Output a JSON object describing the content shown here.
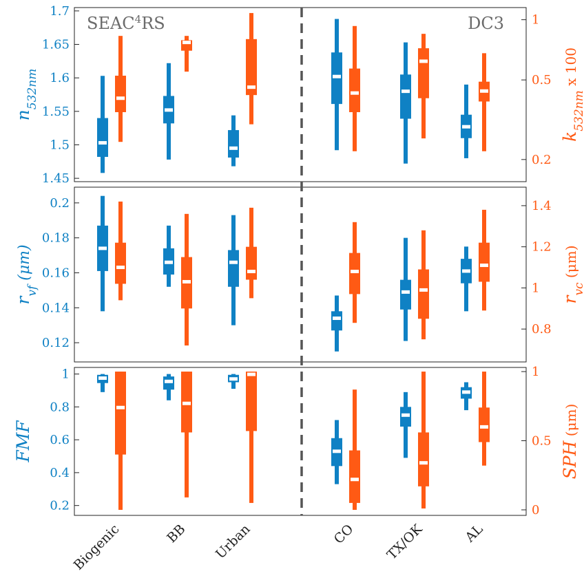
{
  "chart_data": {
    "type": "box",
    "colors": {
      "left": "#0f81c4",
      "right": "#ff5a14",
      "median": "#ffffff",
      "divider": "#555555",
      "frame": "#222222"
    },
    "campaigns": [
      {
        "name": "SEAC",
        "sup": "4",
        "name_after": "RS",
        "side": "left"
      },
      {
        "name": "DC3",
        "sup": "",
        "name_after": "",
        "side": "right"
      }
    ],
    "categories": [
      "Biogenic",
      "BB",
      "Urban",
      "CO",
      "TX/OK",
      "AL"
    ],
    "panels": [
      {
        "left": {
          "label_main": "n",
          "label_sub": "532nm",
          "label_rest": "",
          "ticks": [
            1.45,
            1.5,
            1.55,
            1.6,
            1.65,
            1.7
          ],
          "tick_labels": [
            "1.45",
            "1.5",
            "1.55",
            "1.6",
            "1.65",
            "1.7"
          ],
          "ylim": [
            1.445,
            1.705
          ]
        },
        "right": {
          "label_main": "k",
          "label_sub": "532nm",
          "label_rest": " x 100",
          "scale": "log",
          "ticks": [
            0.2,
            0.5,
            1
          ],
          "tick_labels": [
            "0.2",
            "0.5",
            "1"
          ],
          "ylim": [
            0.155,
            1.15
          ]
        },
        "boxes": [
          {
            "left": {
              "whislo": 1.458,
              "q1": 1.482,
              "med": 1.503,
              "q3": 1.54,
              "whishi": 1.603
            },
            "right": {
              "whislo": 0.245,
              "q1": 0.345,
              "med": 0.405,
              "q3": 0.525,
              "whishi": 0.83
            }
          },
          {
            "left": {
              "whislo": 1.478,
              "q1": 1.532,
              "med": 1.552,
              "q3": 1.573,
              "whishi": 1.622
            },
            "right": {
              "whislo": 0.55,
              "q1": 0.7,
              "med": 0.77,
              "q3": 0.79,
              "whishi": 0.83
            }
          },
          {
            "left": {
              "whislo": 1.468,
              "q1": 1.481,
              "med": 1.495,
              "q3": 1.522,
              "whishi": 1.544
            },
            "right": {
              "whislo": 0.3,
              "q1": 0.42,
              "med": 0.46,
              "q3": 0.8,
              "whishi": 1.08
            }
          },
          {
            "left": {
              "whislo": 1.492,
              "q1": 1.561,
              "med": 1.602,
              "q3": 1.638,
              "whishi": 1.688
            },
            "right": {
              "whislo": 0.22,
              "q1": 0.345,
              "med": 0.43,
              "q3": 0.57,
              "whishi": 0.93
            }
          },
          {
            "left": {
              "whislo": 1.472,
              "q1": 1.539,
              "med": 1.58,
              "q3": 1.605,
              "whishi": 1.653
            },
            "right": {
              "whislo": 0.255,
              "q1": 0.405,
              "med": 0.62,
              "q3": 0.72,
              "whishi": 0.85
            }
          },
          {
            "left": {
              "whislo": 1.48,
              "q1": 1.51,
              "med": 1.527,
              "q3": 1.545,
              "whishi": 1.59
            },
            "right": {
              "whislo": 0.22,
              "q1": 0.39,
              "med": 0.44,
              "q3": 0.49,
              "whishi": 0.68
            }
          }
        ]
      },
      {
        "left": {
          "label_main": "r",
          "label_sub": "vf",
          "label_rest": " (μm)",
          "ticks": [
            0.12,
            0.14,
            0.16,
            0.18,
            0.2
          ],
          "tick_labels": [
            "0.12",
            "0.14",
            "0.16",
            "0.18",
            "0.2"
          ],
          "ylim": [
            0.109,
            0.209
          ]
        },
        "right": {
          "label_main": "r",
          "label_sub": "vc",
          "label_rest": " (μm)",
          "scale": "linear",
          "ticks": [
            0.8,
            1,
            1.2,
            1.4
          ],
          "tick_labels": [
            "0.8",
            "1",
            "1.2",
            "1.4"
          ],
          "ylim": [
            0.64,
            1.49
          ]
        },
        "boxes": [
          {
            "left": {
              "whislo": 0.138,
              "q1": 0.161,
              "med": 0.174,
              "q3": 0.187,
              "whishi": 0.204
            },
            "right": {
              "whislo": 0.94,
              "q1": 1.02,
              "med": 1.1,
              "q3": 1.22,
              "whishi": 1.42
            }
          },
          {
            "left": {
              "whislo": 0.152,
              "q1": 0.159,
              "med": 0.166,
              "q3": 0.174,
              "whishi": 0.187
            },
            "right": {
              "whislo": 0.72,
              "q1": 0.9,
              "med": 1.03,
              "q3": 1.15,
              "whishi": 1.36
            }
          },
          {
            "left": {
              "whislo": 0.13,
              "q1": 0.152,
              "med": 0.166,
              "q3": 0.173,
              "whishi": 0.193
            },
            "right": {
              "whislo": 0.95,
              "q1": 1.04,
              "med": 1.08,
              "q3": 1.2,
              "whishi": 1.39
            }
          },
          {
            "left": {
              "whislo": 0.115,
              "q1": 0.127,
              "med": 0.134,
              "q3": 0.138,
              "whishi": 0.147
            },
            "right": {
              "whislo": 0.83,
              "q1": 0.97,
              "med": 1.08,
              "q3": 1.17,
              "whishi": 1.32
            }
          },
          {
            "left": {
              "whislo": 0.121,
              "q1": 0.139,
              "med": 0.149,
              "q3": 0.156,
              "whishi": 0.18
            },
            "right": {
              "whislo": 0.75,
              "q1": 0.85,
              "med": 0.99,
              "q3": 1.09,
              "whishi": 1.28
            }
          },
          {
            "left": {
              "whislo": 0.138,
              "q1": 0.154,
              "med": 0.161,
              "q3": 0.168,
              "whishi": 0.175
            },
            "right": {
              "whislo": 0.89,
              "q1": 1.03,
              "med": 1.11,
              "q3": 1.22,
              "whishi": 1.38
            }
          }
        ]
      },
      {
        "left": {
          "label_main": "FMF",
          "label_sub": "",
          "label_rest": "",
          "ticks": [
            0.2,
            0.4,
            0.6,
            0.8,
            1
          ],
          "tick_labels": [
            "0.2",
            "0.4",
            "0.6",
            "0.8",
            "1"
          ],
          "ylim": [
            0.14,
            1.04
          ]
        },
        "right": {
          "label_main": "SPH",
          "label_sub": "",
          "label_rest": " (μm)",
          "scale": "linear",
          "ticks": [
            0,
            0.5,
            1
          ],
          "tick_labels": [
            "0",
            "0.5",
            "1"
          ],
          "ylim": [
            -0.04,
            1.03
          ]
        },
        "boxes": [
          {
            "left": {
              "whislo": 0.89,
              "q1": 0.945,
              "med": 0.975,
              "q3": 0.995,
              "whishi": 1.0
            },
            "right": {
              "whislo": 0.0,
              "q1": 0.4,
              "med": 0.74,
              "q3": 1.0,
              "whishi": 1.0
            }
          },
          {
            "left": {
              "whislo": 0.84,
              "q1": 0.905,
              "med": 0.955,
              "q3": 0.985,
              "whishi": 1.0
            },
            "right": {
              "whislo": 0.09,
              "q1": 0.56,
              "med": 0.77,
              "q3": 1.0,
              "whishi": 1.0
            }
          },
          {
            "left": {
              "whislo": 0.91,
              "q1": 0.95,
              "med": 0.97,
              "q3": 0.995,
              "whishi": 1.0
            },
            "right": {
              "whislo": 0.05,
              "q1": 0.57,
              "med": 0.98,
              "q3": 1.0,
              "whishi": 1.0
            }
          },
          {
            "left": {
              "whislo": 0.33,
              "q1": 0.44,
              "med": 0.53,
              "q3": 0.61,
              "whishi": 0.72
            },
            "right": {
              "whislo": 0.0,
              "q1": 0.05,
              "med": 0.22,
              "q3": 0.43,
              "whishi": 0.87
            }
          },
          {
            "left": {
              "whislo": 0.49,
              "q1": 0.68,
              "med": 0.75,
              "q3": 0.8,
              "whishi": 0.89
            },
            "right": {
              "whislo": 0.01,
              "q1": 0.17,
              "med": 0.34,
              "q3": 0.56,
              "whishi": 1.0
            }
          },
          {
            "left": {
              "whislo": 0.78,
              "q1": 0.85,
              "med": 0.89,
              "q3": 0.92,
              "whishi": 0.95
            },
            "right": {
              "whislo": 0.32,
              "q1": 0.49,
              "med": 0.6,
              "q3": 0.74,
              "whishi": 1.0
            }
          }
        ]
      }
    ]
  }
}
